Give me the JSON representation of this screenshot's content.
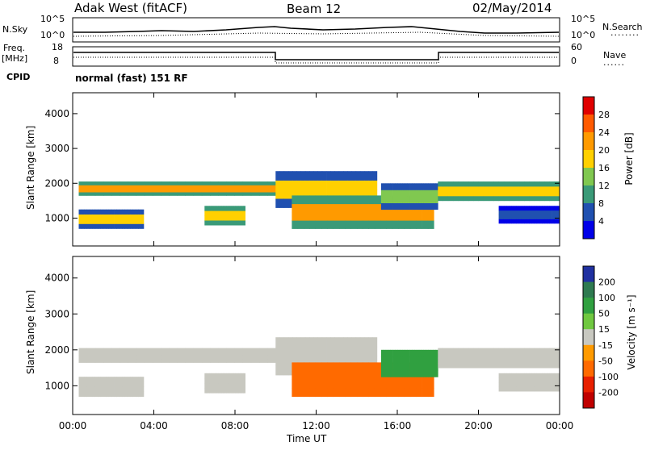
{
  "header": {
    "station": "Adak West (fitACF)",
    "beam": "Beam 12",
    "date": "02/May/2014"
  },
  "top_panel": {
    "left_label": "N.Sky",
    "right_label": "N.Search",
    "ticks_left": [
      "10^5",
      "10^0"
    ],
    "ticks_right": [
      "10^5",
      "10^0"
    ]
  },
  "freq_panel": {
    "left_label_1": "Freq.",
    "left_label_2": "[MHz]",
    "right_label": "Nave",
    "ticks_left": [
      "18",
      "8"
    ],
    "ticks_right": [
      "60",
      "0"
    ]
  },
  "cpid": {
    "label": "CPID",
    "value": "normal (fast) 151 RF"
  },
  "chart_data": [
    {
      "type": "heatmap",
      "title": "",
      "ylabel": "Slant Range [km]",
      "xlabel": "",
      "ylim": [
        200,
        4600
      ],
      "yticks": [
        "1000",
        "2000",
        "3000",
        "4000"
      ],
      "colorbar_label": "Power [dB]",
      "colorbar_ticks": [
        "28",
        "24",
        "20",
        "16",
        "12",
        "8",
        "4"
      ],
      "colorbar_colors": [
        "#e00000",
        "#ff5a00",
        "#ff9a00",
        "#ffd000",
        "#80c850",
        "#3a9a78",
        "#2050b0",
        "#0000e8"
      ],
      "bands": [
        {
          "t_start": 0.3,
          "t_end": 10.0,
          "range_low": 1650,
          "range_high": 2050,
          "peak_db": 26
        },
        {
          "t_start": 0.3,
          "t_end": 3.5,
          "range_low": 700,
          "range_high": 1250,
          "peak_db": 22
        },
        {
          "t_start": 6.5,
          "t_end": 8.5,
          "range_low": 800,
          "range_high": 1350,
          "peak_db": 24
        },
        {
          "t_start": 10.0,
          "t_end": 15.0,
          "range_low": 1300,
          "range_high": 2350,
          "peak_db": 22
        },
        {
          "t_start": 10.8,
          "t_end": 17.8,
          "range_low": 700,
          "range_high": 1650,
          "peak_db": 26
        },
        {
          "t_start": 15.2,
          "t_end": 18.0,
          "range_low": 1250,
          "range_high": 2000,
          "peak_db": 20
        },
        {
          "t_start": 18.0,
          "t_end": 24.0,
          "range_low": 1500,
          "range_high": 2050,
          "peak_db": 24
        },
        {
          "t_start": 21.0,
          "t_end": 24.0,
          "range_low": 850,
          "range_high": 1350,
          "peak_db": 10
        }
      ]
    },
    {
      "type": "heatmap",
      "title": "",
      "ylabel": "Slant Range [km]",
      "xlabel": "Time UT",
      "ylim": [
        200,
        4600
      ],
      "yticks": [
        "1000",
        "2000",
        "3000",
        "4000"
      ],
      "xticks": [
        "00:00",
        "04:00",
        "08:00",
        "12:00",
        "16:00",
        "20:00",
        "00:00"
      ],
      "xlim": [
        0,
        24
      ],
      "colorbar_label": "Velocity [m s⁻¹]",
      "colorbar_ticks": [
        "200",
        "100",
        "50",
        "15",
        "-15",
        "-50",
        "-100",
        "-200"
      ],
      "colorbar_colors": [
        "#2030a0",
        "#2e7a50",
        "#30a040",
        "#70c840",
        "#c8c8c0",
        "#ff9a00",
        "#ff6a00",
        "#e82000",
        "#c00000"
      ],
      "bands": [
        {
          "t_start": 0.3,
          "t_end": 10.0,
          "range_low": 1650,
          "range_high": 2050,
          "velocity": 0
        },
        {
          "t_start": 0.3,
          "t_end": 3.5,
          "range_low": 700,
          "range_high": 1250,
          "velocity": 0
        },
        {
          "t_start": 6.5,
          "t_end": 8.5,
          "range_low": 800,
          "range_high": 1350,
          "velocity": 0
        },
        {
          "t_start": 10.0,
          "t_end": 15.0,
          "range_low": 1300,
          "range_high": 2350,
          "velocity": 0
        },
        {
          "t_start": 10.8,
          "t_end": 17.8,
          "range_low": 700,
          "range_high": 1650,
          "velocity": -60
        },
        {
          "t_start": 15.2,
          "t_end": 18.0,
          "range_low": 1250,
          "range_high": 2000,
          "velocity": 40
        },
        {
          "t_start": 18.0,
          "t_end": 24.0,
          "range_low": 1500,
          "range_high": 2050,
          "velocity": 0
        },
        {
          "t_start": 21.0,
          "t_end": 24.0,
          "range_low": 850,
          "range_high": 1350,
          "velocity": 0
        }
      ]
    }
  ]
}
